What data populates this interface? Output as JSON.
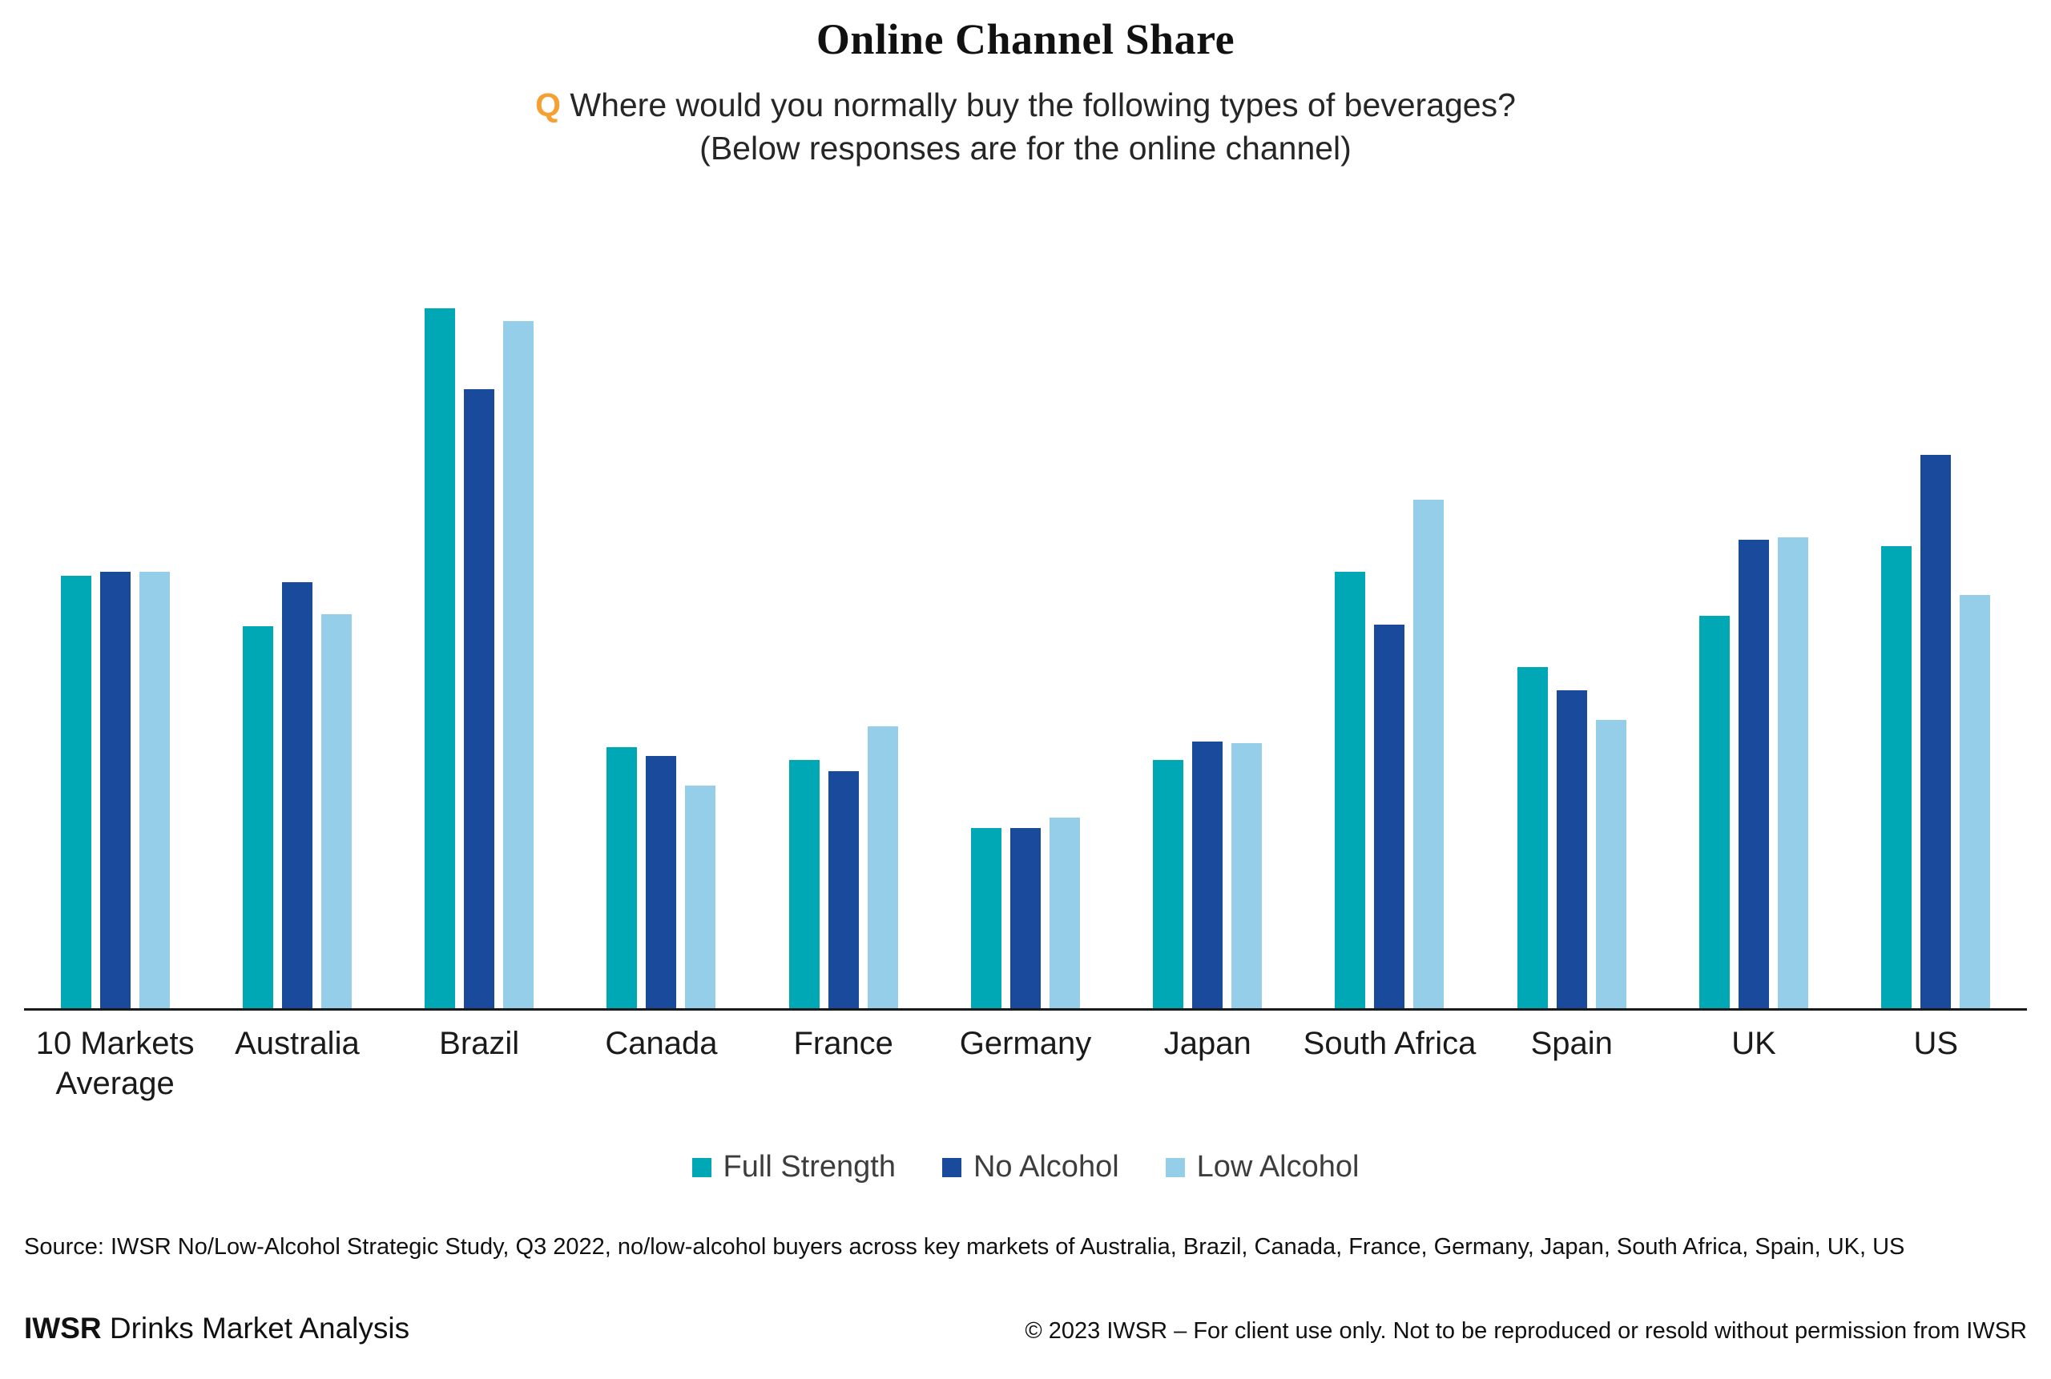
{
  "page": {
    "title": "Online Channel Share",
    "subtitle_q": "Q",
    "subtitle_line1": "Where would you normally buy the following types of beverages?",
    "subtitle_line2": "(Below responses are for the online channel)",
    "source": "Source: IWSR No/Low-Alcohol Strategic Study, Q3 2022, no/low-alcohol buyers across key markets of Australia, Brazil, Canada, France, Germany, Japan, South Africa, Spain, UK, US",
    "footer_left_bold": "IWSR",
    "footer_left_rest": " Drinks Market Analysis",
    "footer_right": "© 2023 IWSR – For client use only. Not to be reproduced or resold without permission from IWSR"
  },
  "colors": {
    "full_strength": "#00A8B5",
    "no_alcohol": "#1A4A9C",
    "low_alcohol": "#94CEE9",
    "q_accent": "#F5A033",
    "axis": "#1a1a1a"
  },
  "chart_data": {
    "type": "bar",
    "title": "Online Channel Share",
    "subtitle": "Q Where would you normally buy the following types of beverages? (Below responses are for the online channel)",
    "categories": [
      "10 Markets Average",
      "Australia",
      "Brazil",
      "Canada",
      "France",
      "Germany",
      "Japan",
      "South Africa",
      "Spain",
      "UK",
      "US"
    ],
    "series": [
      {
        "name": "Full Strength",
        "color": "#00A8B5",
        "values": [
          20.4,
          18.0,
          33.0,
          12.3,
          11.7,
          8.5,
          11.7,
          20.6,
          16.1,
          18.5,
          21.8
        ]
      },
      {
        "name": "No Alcohol",
        "color": "#1A4A9C",
        "values": [
          20.6,
          20.1,
          29.2,
          11.9,
          11.2,
          8.5,
          12.6,
          18.1,
          15.0,
          22.1,
          26.1
        ]
      },
      {
        "name": "Low Alcohol",
        "color": "#94CEE9",
        "values": [
          20.6,
          18.6,
          32.4,
          10.5,
          13.3,
          9.0,
          12.5,
          24.0,
          13.6,
          22.2,
          19.5
        ]
      }
    ],
    "xlabel": "",
    "ylabel": "",
    "ylim": [
      0,
      35
    ],
    "y_axis_hidden": true,
    "grid": false,
    "legend_position": "bottom"
  }
}
